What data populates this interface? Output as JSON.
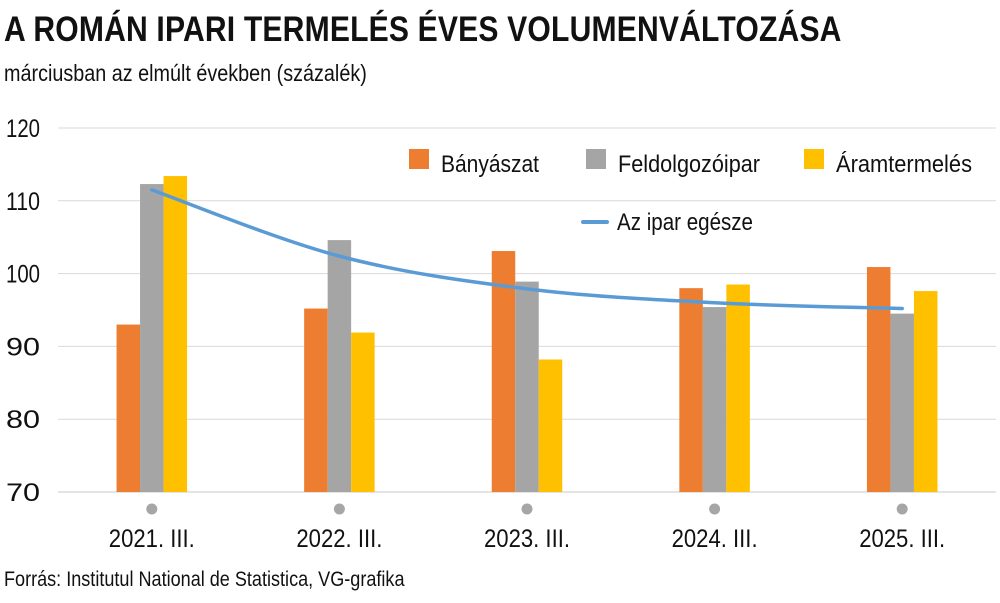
{
  "header": {
    "title": "A ROMÁN IPARI TERMELÉS ÉVES VOLUMENVÁLTOZÁSA",
    "subtitle": "márciusban az elmúlt években (százalék)"
  },
  "footer": {
    "source": "Forrás: Institutul National de Statistica, VG-grafika"
  },
  "chart_data": {
    "type": "bar",
    "title": "A ROMÁN IPARI TERMELÉS ÉVES VOLUMENVÁLTOZÁSA",
    "subtitle": "márciusban az elmúlt években (százalék)",
    "categories": [
      "2021. III.",
      "2022. III.",
      "2023. III.",
      "2024. III.",
      "2025. III."
    ],
    "ylim": [
      70,
      120
    ],
    "yticks": [
      70,
      80,
      90,
      100,
      110,
      120
    ],
    "grid": true,
    "legend_position": "top-right",
    "series": [
      {
        "name": "Bányászat",
        "kind": "bar",
        "color": "#ED7D31",
        "values": [
          93.0,
          95.2,
          103.1,
          98.0,
          100.9
        ]
      },
      {
        "name": "Feldolgozóipar",
        "kind": "bar",
        "color": "#A5A5A5",
        "values": [
          112.3,
          104.6,
          98.9,
          95.4,
          94.5
        ]
      },
      {
        "name": "Áramtermelés",
        "kind": "bar",
        "color": "#FFC000",
        "values": [
          113.4,
          91.9,
          88.2,
          98.5,
          97.6
        ]
      },
      {
        "name": "Az ipar egésze",
        "kind": "line",
        "color": "#5B9BD5",
        "values": [
          111.5,
          102.4,
          97.9,
          96.0,
          95.2
        ]
      }
    ]
  }
}
